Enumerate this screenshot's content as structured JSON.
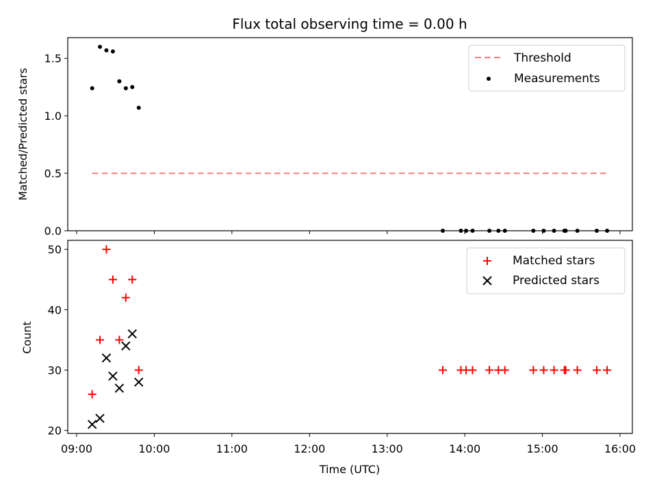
{
  "chart_data": [
    {
      "type": "scatter",
      "title": "Flux total observing time = 0.00 h",
      "ylabel": "Matched/Predicted stars",
      "xlabel": "",
      "ylim": [
        0,
        1.68
      ],
      "yticks": [
        "0.0",
        "0.5",
        "1.0",
        "1.5"
      ],
      "ytick_values": [
        0.0,
        0.5,
        1.0,
        1.5
      ],
      "grid": false,
      "legend": "top-right",
      "series": [
        {
          "name": "Threshold",
          "kind": "dashed-line",
          "color": "#f08080",
          "points": [
            {
              "t": "09:12",
              "y": 0.5
            },
            {
              "t": "15:50",
              "y": 0.5
            }
          ]
        },
        {
          "name": "Measurements",
          "kind": "dot",
          "color": "#000000",
          "points": [
            {
              "t": "09:12",
              "y": 1.24
            },
            {
              "t": "09:18",
              "y": 1.6
            },
            {
              "t": "09:23",
              "y": 1.57
            },
            {
              "t": "09:28",
              "y": 1.56
            },
            {
              "t": "09:33",
              "y": 1.3
            },
            {
              "t": "09:38",
              "y": 1.24
            },
            {
              "t": "09:43",
              "y": 1.25
            },
            {
              "t": "09:48",
              "y": 1.07
            },
            {
              "t": "13:43",
              "y": 0
            },
            {
              "t": "13:57",
              "y": 0
            },
            {
              "t": "14:01",
              "y": 0
            },
            {
              "t": "14:06",
              "y": 0
            },
            {
              "t": "14:19",
              "y": 0
            },
            {
              "t": "14:26",
              "y": 0
            },
            {
              "t": "14:31",
              "y": 0
            },
            {
              "t": "14:53",
              "y": 0
            },
            {
              "t": "15:01",
              "y": 0
            },
            {
              "t": "15:09",
              "y": 0
            },
            {
              "t": "15:17",
              "y": 0
            },
            {
              "t": "15:18",
              "y": 0
            },
            {
              "t": "15:27",
              "y": 0
            },
            {
              "t": "15:42",
              "y": 0
            },
            {
              "t": "15:50",
              "y": 0
            }
          ]
        }
      ]
    },
    {
      "type": "scatter",
      "title": "",
      "ylabel": "Count",
      "xlabel": "Time (UTC)",
      "ylim": [
        19.5,
        51.5
      ],
      "yticks": [
        "20",
        "30",
        "40",
        "50"
      ],
      "ytick_values": [
        20,
        30,
        40,
        50
      ],
      "xticks": [
        "09:00",
        "10:00",
        "11:00",
        "12:00",
        "13:00",
        "14:00",
        "15:00",
        "16:00"
      ],
      "grid": false,
      "legend": "top-right",
      "series": [
        {
          "name": "Matched stars",
          "kind": "plus",
          "color": "#ff0000",
          "points": [
            {
              "t": "09:12",
              "y": 26
            },
            {
              "t": "09:18",
              "y": 35
            },
            {
              "t": "09:23",
              "y": 50
            },
            {
              "t": "09:28",
              "y": 45
            },
            {
              "t": "09:33",
              "y": 35
            },
            {
              "t": "09:38",
              "y": 42
            },
            {
              "t": "09:43",
              "y": 45
            },
            {
              "t": "09:48",
              "y": 30
            },
            {
              "t": "13:43",
              "y": 30
            },
            {
              "t": "13:57",
              "y": 30
            },
            {
              "t": "14:01",
              "y": 30
            },
            {
              "t": "14:06",
              "y": 30
            },
            {
              "t": "14:19",
              "y": 30
            },
            {
              "t": "14:26",
              "y": 30
            },
            {
              "t": "14:31",
              "y": 30
            },
            {
              "t": "14:53",
              "y": 30
            },
            {
              "t": "15:01",
              "y": 30
            },
            {
              "t": "15:09",
              "y": 30
            },
            {
              "t": "15:17",
              "y": 30
            },
            {
              "t": "15:18",
              "y": 30
            },
            {
              "t": "15:27",
              "y": 30
            },
            {
              "t": "15:42",
              "y": 30
            },
            {
              "t": "15:50",
              "y": 30
            }
          ]
        },
        {
          "name": "Predicted stars",
          "kind": "cross",
          "color": "#000000",
          "points": [
            {
              "t": "09:12",
              "y": 21
            },
            {
              "t": "09:18",
              "y": 22
            },
            {
              "t": "09:23",
              "y": 32
            },
            {
              "t": "09:28",
              "y": 29
            },
            {
              "t": "09:33",
              "y": 27
            },
            {
              "t": "09:38",
              "y": 34
            },
            {
              "t": "09:43",
              "y": 36
            },
            {
              "t": "09:48",
              "y": 28
            }
          ]
        }
      ]
    }
  ]
}
